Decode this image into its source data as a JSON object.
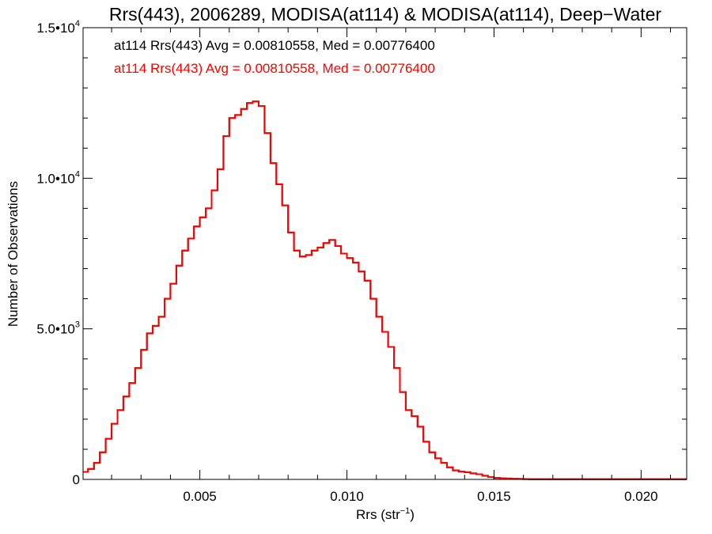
{
  "chart_data": {
    "type": "line",
    "step": true,
    "title": "Rrs(443), 2006289, MODISA(at114) & MODISA(at114), Deep−Water",
    "xlabel_main": "Rrs (str",
    "xlabel_sup": "−1",
    "xlabel_end": ")",
    "ylabel": "Number of Observations",
    "xlim": [
      0.00103,
      0.02155
    ],
    "ylim": [
      0,
      15000
    ],
    "x_ticks": [
      {
        "value": 0.005,
        "label": "0.005"
      },
      {
        "value": 0.01,
        "label": "0.010"
      },
      {
        "value": 0.015,
        "label": "0.015"
      },
      {
        "value": 0.02,
        "label": "0.020"
      }
    ],
    "y_ticks": [
      {
        "value": 0,
        "label": "0",
        "sup": ""
      },
      {
        "value": 5000,
        "label": "5.0•10",
        "sup": "3"
      },
      {
        "value": 10000,
        "label": "1.0•10",
        "sup": "4"
      },
      {
        "value": 15000,
        "label": "1.5•10",
        "sup": "4"
      }
    ],
    "x_minor_step": 0.001,
    "y_minor_step": 1000,
    "legend": [
      {
        "text": "at114 Rrs(443) Avg = 0.00810558, Med = 0.00776400",
        "color": "#000000"
      },
      {
        "text": "at114 Rrs(443) Avg = 0.00810558, Med = 0.00776400",
        "color": "#ff0000"
      }
    ],
    "series": [
      {
        "color": "#000000",
        "x": [
          0.001,
          0.0012,
          0.0014,
          0.0016,
          0.0018,
          0.002,
          0.0022,
          0.0024,
          0.0026,
          0.0028,
          0.003,
          0.0032,
          0.0034,
          0.0036,
          0.0038,
          0.004,
          0.0042,
          0.0044,
          0.0046,
          0.0048,
          0.005,
          0.0052,
          0.0054,
          0.0056,
          0.0058,
          0.006,
          0.0062,
          0.0064,
          0.0066,
          0.0068,
          0.007,
          0.0072,
          0.0074,
          0.0076,
          0.0078,
          0.008,
          0.0082,
          0.0084,
          0.0086,
          0.0088,
          0.009,
          0.0092,
          0.0094,
          0.0096,
          0.0098,
          0.01,
          0.0102,
          0.0104,
          0.0106,
          0.0108,
          0.011,
          0.0112,
          0.0114,
          0.0116,
          0.0118,
          0.012,
          0.0122,
          0.0124,
          0.0126,
          0.0128,
          0.013,
          0.0132,
          0.0134,
          0.0136,
          0.0138,
          0.014,
          0.0142,
          0.0144,
          0.0146,
          0.0148,
          0.015,
          0.0152,
          0.0154,
          0.0156,
          0.0158,
          0.016,
          0.0162,
          0.0164,
          0.0166,
          0.0168,
          0.017,
          0.0172,
          0.0174,
          0.0176,
          0.0178,
          0.018,
          0.0182,
          0.0184,
          0.0186,
          0.0188,
          0.019,
          0.0192,
          0.0194,
          0.0196,
          0.0198,
          0.02,
          0.0205,
          0.021,
          0.0215
        ],
        "y": [
          250,
          350,
          550,
          900,
          1350,
          1850,
          2300,
          2750,
          3200,
          3700,
          4300,
          4850,
          5100,
          5400,
          6000,
          6500,
          7100,
          7600,
          8000,
          8400,
          8700,
          9000,
          9600,
          10300,
          11400,
          12000,
          12100,
          12300,
          12500,
          12550,
          12400,
          11500,
          10500,
          9800,
          9100,
          8200,
          7600,
          7400,
          7450,
          7600,
          7700,
          7850,
          7950,
          7750,
          7500,
          7350,
          7200,
          6900,
          6600,
          6000,
          5400,
          4900,
          4400,
          3700,
          2900,
          2300,
          2100,
          1750,
          1250,
          900,
          700,
          550,
          400,
          300,
          260,
          240,
          200,
          170,
          120,
          80,
          50,
          40,
          30,
          20,
          15,
          10,
          8,
          6,
          5,
          5,
          5,
          5,
          5,
          5,
          5,
          5,
          5,
          5,
          5,
          5,
          5,
          5,
          5,
          5,
          5,
          5,
          5,
          5,
          5
        ]
      },
      {
        "color": "#ff0000",
        "x": [
          0.001,
          0.0012,
          0.0014,
          0.0016,
          0.0018,
          0.002,
          0.0022,
          0.0024,
          0.0026,
          0.0028,
          0.003,
          0.0032,
          0.0034,
          0.0036,
          0.0038,
          0.004,
          0.0042,
          0.0044,
          0.0046,
          0.0048,
          0.005,
          0.0052,
          0.0054,
          0.0056,
          0.0058,
          0.006,
          0.0062,
          0.0064,
          0.0066,
          0.0068,
          0.007,
          0.0072,
          0.0074,
          0.0076,
          0.0078,
          0.008,
          0.0082,
          0.0084,
          0.0086,
          0.0088,
          0.009,
          0.0092,
          0.0094,
          0.0096,
          0.0098,
          0.01,
          0.0102,
          0.0104,
          0.0106,
          0.0108,
          0.011,
          0.0112,
          0.0114,
          0.0116,
          0.0118,
          0.012,
          0.0122,
          0.0124,
          0.0126,
          0.0128,
          0.013,
          0.0132,
          0.0134,
          0.0136,
          0.0138,
          0.014,
          0.0142,
          0.0144,
          0.0146,
          0.0148,
          0.015,
          0.0152,
          0.0154,
          0.0156,
          0.0158,
          0.016,
          0.0162,
          0.0164,
          0.0166,
          0.0168,
          0.017,
          0.0172,
          0.0174,
          0.0176,
          0.0178,
          0.018,
          0.0182,
          0.0184,
          0.0186,
          0.0188,
          0.019,
          0.0192,
          0.0194,
          0.0196,
          0.0198,
          0.02,
          0.0205,
          0.021,
          0.0215
        ],
        "y": [
          250,
          350,
          550,
          900,
          1350,
          1850,
          2300,
          2750,
          3200,
          3700,
          4300,
          4850,
          5100,
          5400,
          6000,
          6500,
          7100,
          7600,
          8000,
          8400,
          8700,
          9000,
          9600,
          10300,
          11400,
          12000,
          12100,
          12300,
          12500,
          12550,
          12400,
          11500,
          10500,
          9800,
          9100,
          8200,
          7600,
          7400,
          7450,
          7600,
          7700,
          7850,
          7950,
          7750,
          7500,
          7350,
          7200,
          6900,
          6600,
          6000,
          5400,
          4900,
          4400,
          3700,
          2900,
          2300,
          2100,
          1750,
          1250,
          900,
          700,
          550,
          400,
          300,
          260,
          240,
          200,
          170,
          120,
          80,
          50,
          40,
          30,
          20,
          15,
          10,
          8,
          6,
          5,
          5,
          5,
          5,
          5,
          5,
          5,
          5,
          5,
          5,
          5,
          5,
          5,
          5,
          5,
          5,
          5,
          5,
          5,
          5,
          5
        ]
      }
    ]
  }
}
